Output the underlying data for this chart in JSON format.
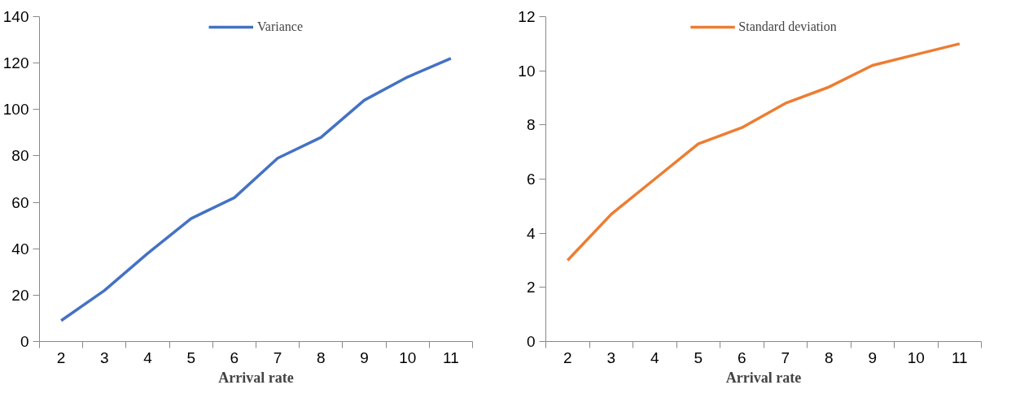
{
  "chart_data": [
    {
      "type": "line",
      "xlabel": "Arrival rate",
      "categories": [
        "2",
        "3",
        "4",
        "5",
        "6",
        "7",
        "8",
        "9",
        "10",
        "11"
      ],
      "series": [
        {
          "name": "Variance",
          "color": "#4472c4",
          "values": [
            9,
            22,
            38,
            53,
            62,
            79,
            88,
            104,
            114,
            122
          ]
        }
      ],
      "ylim": [
        0,
        140
      ],
      "yticks": [
        0,
        20,
        40,
        60,
        80,
        100,
        120,
        140
      ],
      "grid": false,
      "legend": "top",
      "marker": "none",
      "line_style": "solid"
    },
    {
      "type": "line",
      "xlabel": "Arrival rate",
      "categories": [
        "2",
        "3",
        "4",
        "5",
        "6",
        "7",
        "8",
        "9",
        "10",
        "11"
      ],
      "series": [
        {
          "name": "Standard deviation",
          "color": "#ed7d31",
          "values": [
            3,
            4.7,
            6,
            7.3,
            7.9,
            8.8,
            9.4,
            10.2,
            10.6,
            11
          ]
        }
      ],
      "ylim": [
        0,
        12
      ],
      "yticks": [
        0,
        2,
        4,
        6,
        8,
        10,
        12
      ],
      "grid": false,
      "legend": "top",
      "marker": "none",
      "line_style": "solid"
    }
  ]
}
